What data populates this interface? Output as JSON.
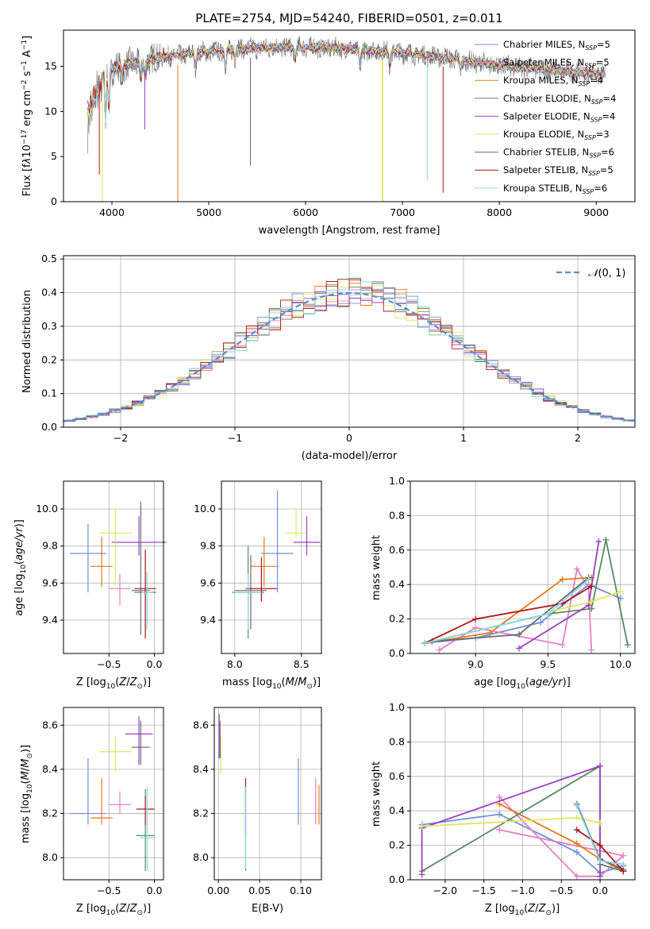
{
  "colors": [
    "#6e90dc",
    "#e67fc4",
    "#e57a1a",
    "#5a8a62",
    "#9b3fc0",
    "#dfe85c",
    "#6b6b6b",
    "#b01818",
    "#88d8e8"
  ],
  "chart_data": [
    {
      "type": "line",
      "title": "PLATE=2754, MJD=54240, FIBERID=0501, z=0.011",
      "xlabel": "wavelength [Angstrom, rest frame]",
      "ylabel": "Flux [f_λ 10^-17 erg cm^-2 s^-1 A^-1]",
      "xlim": [
        3500,
        9400
      ],
      "ylim": [
        0,
        19
      ],
      "xticks": [
        4000,
        5000,
        6000,
        7000,
        8000,
        9000
      ],
      "yticks": [
        0,
        5,
        10,
        15
      ],
      "legend_position": "top-right",
      "series": [
        {
          "name": "Chabrier MILES, N_SSP=5"
        },
        {
          "name": "Salpeter MILES, N_SSP=5"
        },
        {
          "name": "Kroupa MILES, N_SSP=4"
        },
        {
          "name": "Chabrier ELODIE, N_SSP=4"
        },
        {
          "name": "Salpeter ELODIE, N_SSP=4"
        },
        {
          "name": "Kroupa ELODIE, N_SSP=3"
        },
        {
          "name": "Chabrier STELIB, N_SSP=6"
        },
        {
          "name": "Salpeter STELIB, N_SSP=5"
        },
        {
          "name": "Kroupa STELIB, N_SSP=6"
        }
      ],
      "continuum": {
        "x": [
          3750,
          3850,
          3950,
          4100,
          4300,
          4500,
          4700,
          4900,
          5100,
          5300,
          5500,
          5700,
          5900,
          6100,
          6300,
          6500,
          6700,
          6900,
          7100,
          7300,
          7500,
          7700,
          7900,
          8100,
          8300,
          8500,
          8700,
          8900,
          9100
        ],
        "y": [
          11,
          13.5,
          14.5,
          15,
          15.5,
          16,
          16.2,
          16.5,
          16.7,
          16.9,
          17,
          17.1,
          17.1,
          17.1,
          17,
          16.9,
          16.7,
          16.6,
          16.4,
          16.1,
          15.9,
          15.5,
          15.2,
          15,
          14.8,
          14.6,
          14.4,
          14.3,
          14
        ]
      }
    },
    {
      "type": "bar",
      "xlabel": "(data-model)/error",
      "ylabel": "Normed distribution",
      "xlim": [
        -2.5,
        2.5
      ],
      "ylim": [
        0,
        0.51
      ],
      "xticks": [
        -2,
        -1,
        0,
        1,
        2
      ],
      "yticks": [
        0.0,
        0.1,
        0.2,
        0.3,
        0.4,
        0.5
      ],
      "legend": "N(0,1)",
      "legend_position": "top-right",
      "bin_width": 0.1
    },
    {
      "type": "scatter",
      "xlabel": "Z [log10(Z/Z⊙)]",
      "ylabel": "age  [log10(age/yr)]",
      "xlim": [
        -1.0,
        0.1
      ],
      "ylim": [
        9.22,
        10.15
      ],
      "xticks": [
        -0.5,
        0.0
      ],
      "yticks": [
        9.4,
        9.6,
        9.8,
        10.0
      ],
      "points": [
        {
          "x": -0.73,
          "y": 9.76,
          "xerr": 0.2,
          "ylo": 9.55,
          "yhi": 9.92
        },
        {
          "x": -0.38,
          "y": 9.57,
          "xerr": 0.12,
          "ylo": 9.48,
          "yhi": 9.65
        },
        {
          "x": -0.58,
          "y": 9.69,
          "xerr": 0.12,
          "ylo": 9.58,
          "yhi": 9.85
        },
        {
          "x": -0.1,
          "y": 9.55,
          "xerr": 0.12,
          "ylo": 9.32,
          "yhi": 9.78
        },
        {
          "x": -0.17,
          "y": 9.82,
          "xerr": 0.3,
          "ylo": 9.75,
          "yhi": 9.96
        },
        {
          "x": -0.43,
          "y": 9.87,
          "xerr": 0.18,
          "ylo": 9.58,
          "yhi": 10.0
        },
        {
          "x": -0.15,
          "y": 9.56,
          "xerr": 0.1,
          "ylo": 9.32,
          "yhi": 10.04
        },
        {
          "x": -0.1,
          "y": 9.57,
          "xerr": 0.12,
          "ylo": 9.3,
          "yhi": 9.78
        },
        {
          "x": -0.08,
          "y": 9.55,
          "xerr": 0.06,
          "ylo": 9.35,
          "yhi": 9.66
        }
      ]
    },
    {
      "type": "scatter",
      "xlabel": "mass [log10(M/M⊙)]",
      "xlim": [
        7.9,
        8.65
      ],
      "ylim": [
        9.22,
        10.15
      ],
      "xticks": [
        8.0,
        8.5
      ],
      "yticks": [
        9.4,
        9.6,
        9.8,
        10.0
      ],
      "points": [
        {
          "x": 8.32,
          "y": 9.76,
          "xerr": 0.12,
          "ylo": 9.55,
          "yhi": 10.1
        },
        {
          "x": 8.2,
          "y": 9.57,
          "xerr": 0.1,
          "ylo": 9.5,
          "yhi": 9.68
        },
        {
          "x": 8.22,
          "y": 9.69,
          "xerr": 0.1,
          "ylo": 9.58,
          "yhi": 9.85
        },
        {
          "x": 8.1,
          "y": 9.55,
          "xerr": 0.12,
          "ylo": 9.3,
          "yhi": 9.8
        },
        {
          "x": 8.54,
          "y": 9.82,
          "xerr": 0.1,
          "ylo": 9.75,
          "yhi": 9.96
        },
        {
          "x": 8.46,
          "y": 9.87,
          "xerr": 0.08,
          "ylo": 9.85,
          "yhi": 10.0
        },
        {
          "x": 8.12,
          "y": 9.56,
          "xerr": 0.12,
          "ylo": 9.35,
          "yhi": 9.75
        },
        {
          "x": 8.2,
          "y": 9.57,
          "xerr": 0.12,
          "ylo": 9.5,
          "yhi": 9.74
        },
        {
          "x": 8.1,
          "y": 9.55,
          "xerr": 0.1,
          "ylo": 9.35,
          "yhi": 9.65
        }
      ]
    },
    {
      "type": "line",
      "xlabel": "age  [log10(age/yr)]",
      "ylabel": "mass weight",
      "xlim": [
        8.55,
        10.1
      ],
      "ylim": [
        0,
        1.0
      ],
      "xticks": [
        9.0,
        9.5,
        10.0
      ],
      "yticks": [
        0.0,
        0.2,
        0.4,
        0.6,
        0.8,
        1.0
      ],
      "series": [
        {
          "x": [
            8.65,
            9.0,
            9.45,
            9.78,
            10.0
          ],
          "y": [
            0.06,
            0.09,
            0.18,
            0.4,
            0.32
          ]
        },
        {
          "x": [
            8.75,
            9.0,
            9.6,
            9.7,
            9.78,
            9.8
          ],
          "y": [
            0.02,
            0.15,
            0.05,
            0.49,
            0.38,
            0.02
          ]
        },
        {
          "x": [
            8.65,
            9.1,
            9.6,
            9.8
          ],
          "y": [
            0.06,
            0.12,
            0.43,
            0.44
          ]
        },
        {
          "x": [
            8.65,
            9.5,
            9.8,
            9.9,
            10.05
          ],
          "y": [
            0.06,
            0.23,
            0.26,
            0.66,
            0.05
          ]
        },
        {
          "x": [
            9.3,
            9.78,
            9.85
          ],
          "y": [
            0.03,
            0.28,
            0.65
          ]
        },
        {
          "x": [
            9.5,
            9.8,
            10.0
          ],
          "y": [
            0.24,
            0.3,
            0.36
          ]
        },
        {
          "x": [
            8.7,
            9.3,
            9.78
          ],
          "y": [
            0.07,
            0.11,
            0.44
          ]
        },
        {
          "x": [
            8.65,
            9.0,
            9.6,
            9.8
          ],
          "y": [
            0.06,
            0.2,
            0.29,
            0.39
          ]
        },
        {
          "x": [
            8.65,
            9.5,
            9.78
          ],
          "y": [
            0.06,
            0.23,
            0.43
          ]
        }
      ]
    },
    {
      "type": "scatter",
      "xlabel": "Z [log10(Z/Z⊙)]",
      "ylabel": "mass [log10(M/M⊙)]",
      "xlim": [
        -1.0,
        0.1
      ],
      "ylim": [
        7.9,
        8.68
      ],
      "xticks": [
        -0.5,
        0.0
      ],
      "yticks": [
        8.0,
        8.2,
        8.4,
        8.6
      ],
      "points": [
        {
          "x": -0.73,
          "y": 8.2,
          "xerr": 0.2,
          "ylo": 8.15,
          "yhi": 8.45
        },
        {
          "x": -0.38,
          "y": 8.24,
          "xerr": 0.12,
          "ylo": 8.2,
          "yhi": 8.3
        },
        {
          "x": -0.58,
          "y": 8.18,
          "xerr": 0.12,
          "ylo": 8.15,
          "yhi": 8.36
        },
        {
          "x": -0.1,
          "y": 8.1,
          "xerr": 0.1,
          "ylo": 7.94,
          "yhi": 8.31
        },
        {
          "x": -0.17,
          "y": 8.56,
          "xerr": 0.15,
          "ylo": 8.42,
          "yhi": 8.64
        },
        {
          "x": -0.43,
          "y": 8.48,
          "xerr": 0.18,
          "ylo": 8.39,
          "yhi": 8.55
        },
        {
          "x": -0.15,
          "y": 8.5,
          "xerr": 0.1,
          "ylo": 8.42,
          "yhi": 8.62
        },
        {
          "x": -0.1,
          "y": 8.22,
          "xerr": 0.1,
          "ylo": 8.15,
          "yhi": 8.28
        },
        {
          "x": -0.08,
          "y": 8.09,
          "xerr": 0.08,
          "ylo": 7.94,
          "yhi": 8.32
        }
      ]
    },
    {
      "type": "scatter",
      "xlabel": "E(B-V)",
      "xlim": [
        -0.005,
        0.125
      ],
      "ylim": [
        7.9,
        8.68
      ],
      "xticks": [
        0.0,
        0.05,
        0.1
      ],
      "yticks": [
        8.0,
        8.2,
        8.4,
        8.6
      ],
      "points": [
        {
          "x": 0.097,
          "y": 8.3,
          "ylo": 8.15,
          "yhi": 8.45
        },
        {
          "x": 0.118,
          "y": 8.24,
          "ylo": 8.15,
          "yhi": 8.36
        },
        {
          "x": 0.122,
          "y": 8.24,
          "ylo": 8.15,
          "yhi": 8.33
        },
        {
          "x": 0.033,
          "y": 8.1,
          "ylo": 7.94,
          "yhi": 8.32
        },
        {
          "x": 0.001,
          "y": 8.56,
          "ylo": 8.45,
          "yhi": 8.65
        },
        {
          "x": 0.003,
          "y": 8.48,
          "ylo": 8.38,
          "yhi": 8.55
        },
        {
          "x": 0.002,
          "y": 8.52,
          "ylo": 8.45,
          "yhi": 8.62
        },
        {
          "x": 0.033,
          "y": 8.22,
          "ylo": 8.1,
          "yhi": 8.36
        },
        {
          "x": 0.033,
          "y": 8.15,
          "ylo": 7.95,
          "yhi": 8.32
        }
      ]
    },
    {
      "type": "line",
      "xlabel": "Z [log10(Z/Z⊙)]",
      "ylabel": "mass weight",
      "xlim": [
        -2.45,
        0.45
      ],
      "ylim": [
        0,
        1.0
      ],
      "xticks": [
        -2.0,
        -1.5,
        -1.0,
        -0.5,
        0.0
      ],
      "yticks": [
        0.0,
        0.2,
        0.4,
        0.6,
        0.8,
        1.0
      ],
      "series": [
        {
          "x": [
            -2.3,
            -1.3,
            -0.3,
            0.0,
            0.3
          ],
          "y": [
            0.32,
            0.38,
            0.16,
            0.04,
            0.08
          ]
        },
        {
          "x": [
            -1.3,
            -0.3,
            0.0,
            0.3,
            -1.3
          ],
          "y": [
            0.48,
            0.02,
            0.02,
            0.14,
            0.29
          ]
        },
        {
          "x": [
            -1.3,
            -0.3,
            0.0,
            0.3
          ],
          "y": [
            0.44,
            0.21,
            0.12,
            0.05
          ]
        },
        {
          "x": [
            -2.3,
            0.0,
            0.0,
            0.3
          ],
          "y": [
            0.05,
            0.66,
            0.09,
            0.05
          ]
        },
        {
          "x": [
            -2.3,
            -2.3,
            0.0,
            0.0
          ],
          "y": [
            0.03,
            0.3,
            0.66,
            0.02
          ]
        },
        {
          "x": [
            -2.3,
            -0.3,
            0.0
          ],
          "y": [
            0.31,
            0.36,
            0.33
          ]
        },
        {
          "x": [
            -0.3,
            0.0,
            0.3
          ],
          "y": [
            0.44,
            0.12,
            0.06
          ]
        },
        {
          "x": [
            -0.3,
            0.0,
            0.3
          ],
          "y": [
            0.29,
            0.2,
            0.05
          ]
        },
        {
          "x": [
            -0.3,
            0.0,
            0.3
          ],
          "y": [
            0.43,
            0.11,
            0.09
          ]
        }
      ]
    }
  ]
}
